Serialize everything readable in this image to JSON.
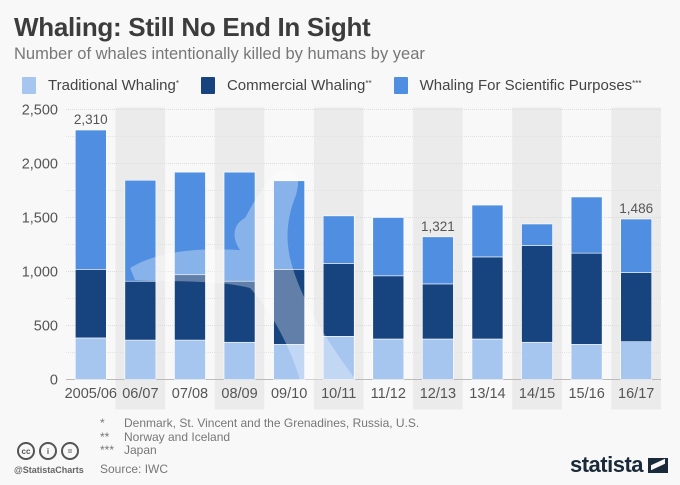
{
  "header": {
    "title": "Whaling: Still No End In Sight",
    "subtitle": "Number of whales intentionally killed by humans by year"
  },
  "legend": [
    {
      "label": "Traditional Whaling",
      "mark": "*",
      "color": "#a6c5ef"
    },
    {
      "label": "Commercial Whaling",
      "mark": "**",
      "color": "#17437f"
    },
    {
      "label": "Whaling For Scientific Purposes",
      "mark": "***",
      "color": "#4f8ee0"
    }
  ],
  "chart_data": {
    "type": "bar",
    "stacked": true,
    "title": "Whaling: Still No End In Sight",
    "subtitle": "Number of whales intentionally killed by humans by year",
    "xlabel": "",
    "ylabel": "",
    "ylim": [
      0,
      2500
    ],
    "yticks": [
      0,
      500,
      1000,
      1500,
      2000,
      2500
    ],
    "ytick_labels": [
      "0",
      "500",
      "1,000",
      "1,500",
      "2,000",
      "2,500"
    ],
    "grid": true,
    "legend_position": "top",
    "categories": [
      "2005/06",
      "06/07",
      "07/08",
      "08/09",
      "09/10",
      "10/11",
      "11/12",
      "12/13",
      "13/14",
      "14/15",
      "15/16",
      "16/17"
    ],
    "series": [
      {
        "name": "Traditional Whaling*",
        "color": "#a6c5ef",
        "values": [
          385,
          365,
          365,
          345,
          325,
          400,
          375,
          375,
          375,
          345,
          325,
          350
        ]
      },
      {
        "name": "Commercial Whaling**",
        "color": "#17437f",
        "values": [
          635,
          545,
          605,
          565,
          695,
          675,
          585,
          510,
          760,
          895,
          845,
          640
        ]
      },
      {
        "name": "Whaling For Scientific Purposes***",
        "color": "#4f8ee0",
        "values": [
          1290,
          935,
          950,
          1010,
          820,
          440,
          540,
          436,
          480,
          200,
          520,
          496
        ]
      }
    ],
    "data_labels": [
      {
        "category": "2005/06",
        "text": "2,310"
      },
      {
        "category": "12/13",
        "text": "1,321"
      },
      {
        "category": "16/17",
        "text": "1,486"
      }
    ]
  },
  "footnotes": [
    {
      "mark": "*",
      "text": "Denmark, St. Vincent and the Grenadines, Russia, U.S."
    },
    {
      "mark": "**",
      "text": "Norway and Iceland"
    },
    {
      "mark": "***",
      "text": "Japan"
    }
  ],
  "source": "Source: IWC",
  "license_icons": [
    "cc-icon",
    "attribution-icon",
    "no-derivatives-icon"
  ],
  "license_icon_labels": [
    "cc",
    "i",
    "="
  ],
  "handle": "@StatistaCharts",
  "brand": "statista"
}
